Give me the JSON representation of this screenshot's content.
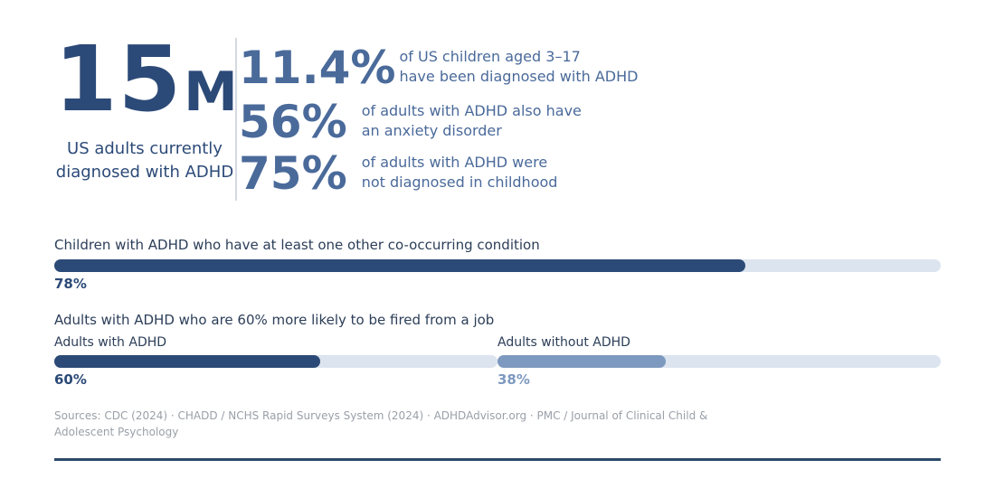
{
  "hero": {
    "number": "15",
    "unit": "M",
    "caption": "US adults currently diagnosed with ADHD"
  },
  "stats": [
    {
      "value": "11.4%",
      "line1": "of US children aged 3–17",
      "line2": "have been diagnosed with ADHD"
    },
    {
      "value": "56%",
      "line1": "of adults with ADHD also have",
      "line2": "an anxiety disorder"
    },
    {
      "value": "75%",
      "line1": "of adults with ADHD were",
      "line2": "not diagnosed in childhood"
    }
  ],
  "chart_data": [
    {
      "type": "bar",
      "title": "Children with ADHD who have at least one other co-occurring condition",
      "series": [
        {
          "name": "",
          "value": 78,
          "label": "78%",
          "color": "#2c4a78"
        }
      ],
      "max": 100
    },
    {
      "type": "bar",
      "title": "Adults with ADHD who are 60% more likely to be fired from a job",
      "series": [
        {
          "name": "Adults with ADHD",
          "value": 60,
          "label": "60%",
          "color": "#2c4a78"
        },
        {
          "name": "Adults without ADHD",
          "value": 38,
          "label": "38%",
          "color": "#7d99bf"
        }
      ],
      "max": 100
    }
  ],
  "sources": "Sources: CDC (2024) · CHADD / NCHS Rapid Surveys System (2024) · ADHDAdvisor.org · PMC / Journal of Clinical Child & Adolescent Psychology",
  "colors": {
    "primary": "#2c4a78",
    "secondary": "#4a6a9a",
    "light": "#7d99bf",
    "track": "#dce4ef"
  }
}
